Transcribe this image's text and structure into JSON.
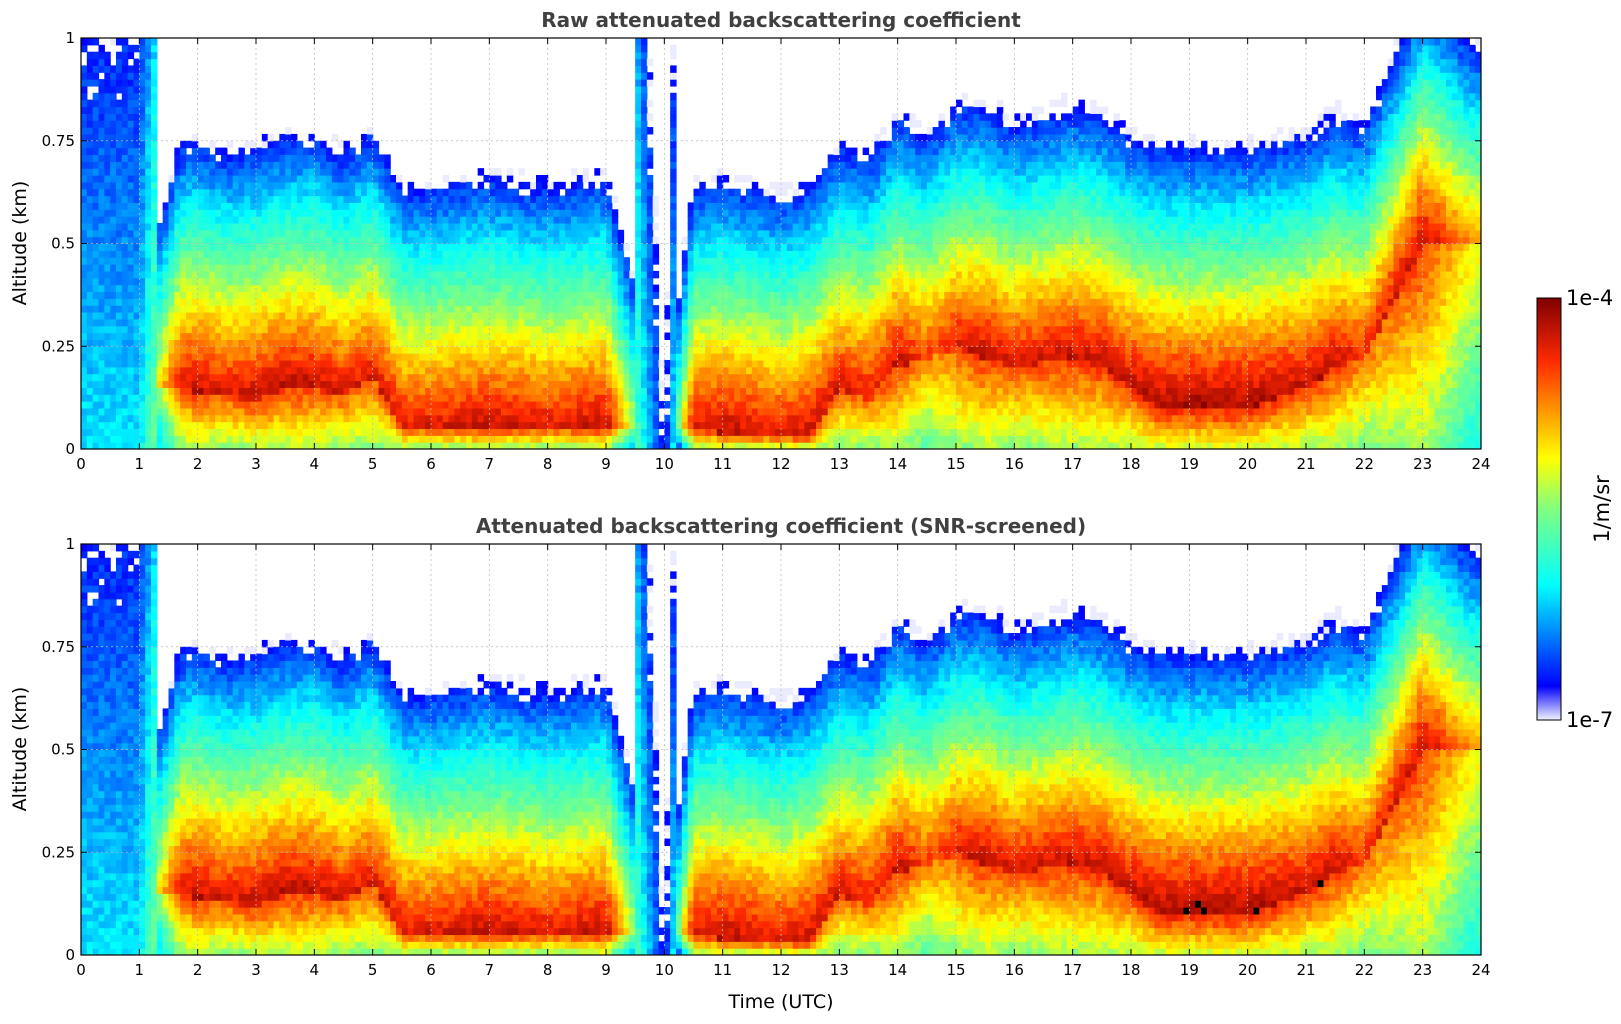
{
  "chart_data": [
    {
      "type": "heatmap",
      "title": "Raw attenuated backscattering coefficient",
      "xlabel": "",
      "ylabel": "Altitude (km)",
      "xlim": [
        0,
        24
      ],
      "ylim": [
        0,
        1
      ],
      "x_ticks": [
        "0",
        "1",
        "2",
        "3",
        "4",
        "5",
        "6",
        "7",
        "8",
        "9",
        "10",
        "11",
        "12",
        "13",
        "14",
        "15",
        "16",
        "17",
        "18",
        "19",
        "20",
        "21",
        "22",
        "23",
        "24"
      ],
      "y_ticks": [
        "0",
        "0.25",
        "0.5",
        "0.75",
        "1"
      ],
      "grid": true,
      "time_utc": [
        0,
        1,
        1.7,
        2,
        2.5,
        3,
        3.5,
        4,
        4.5,
        5,
        5.5,
        6,
        7,
        8,
        9,
        10,
        10.5,
        11,
        12,
        12.5,
        13,
        13.5,
        14,
        14.5,
        15,
        15.5,
        16,
        17,
        17.5,
        18,
        18.5,
        19,
        20,
        21,
        21.5,
        22,
        23,
        23.9
      ],
      "cloud_base_km": [
        null,
        null,
        0.15,
        0.14,
        0.13,
        0.12,
        0.15,
        0.15,
        0.13,
        0.18,
        0.05,
        0.05,
        0.05,
        0.05,
        0.05,
        null,
        0.05,
        0.04,
        0.03,
        0.03,
        0.15,
        0.12,
        0.2,
        0.22,
        0.25,
        0.22,
        0.2,
        0.22,
        0.2,
        0.15,
        0.1,
        0.1,
        0.1,
        0.15,
        0.2,
        0.22,
        0.5,
        0.5
      ],
      "log10_max_beta": [
        -5.8,
        -5.8,
        -4.3,
        -4.2,
        -4.3,
        -4.2,
        -4.2,
        -4.2,
        -4.3,
        -4.3,
        -4.3,
        -4.3,
        -4.2,
        -4.3,
        -4.2,
        -6.5,
        -4.3,
        -4.2,
        -4.3,
        -4.2,
        -4.3,
        -4.3,
        -4.2,
        -4.5,
        -4.3,
        -4.2,
        -4.3,
        -4.2,
        -4.2,
        -4.2,
        -4.1,
        -4.1,
        -4.1,
        -4.2,
        -4.2,
        -4.4,
        -4.2,
        -4.8
      ]
    },
    {
      "type": "heatmap",
      "title": "Attenuated backscattering coefficient (SNR-screened)",
      "xlabel": "Time (UTC)",
      "ylabel": "Altitude (km)",
      "xlim": [
        0,
        24
      ],
      "ylim": [
        0,
        1
      ],
      "x_ticks": [
        "0",
        "1",
        "2",
        "3",
        "4",
        "5",
        "6",
        "7",
        "8",
        "9",
        "10",
        "11",
        "12",
        "13",
        "14",
        "15",
        "16",
        "17",
        "18",
        "19",
        "20",
        "21",
        "22",
        "23",
        "24"
      ],
      "y_ticks": [
        "0",
        "0.25",
        "0.5",
        "0.75",
        "1"
      ],
      "grid": true,
      "note_values": "same field as raw panel; saturated returns shown in black"
    }
  ],
  "colorbar": {
    "label": "1/m/sr",
    "max_label": "1e-4",
    "min_label": "1e-7",
    "colormap": "jet",
    "scale": "log",
    "range": [
      1e-07,
      0.0001
    ]
  },
  "colors": {
    "saturated": "#000000",
    "no_data": "#ffffff",
    "title": "#404040"
  }
}
